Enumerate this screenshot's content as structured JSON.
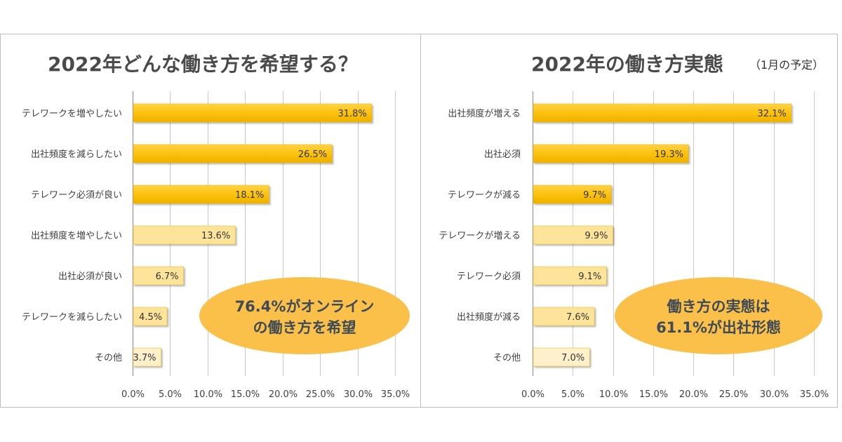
{
  "chart_data": [
    {
      "type": "bar",
      "orientation": "horizontal",
      "title": "2022年どんな働き方を希望する？",
      "subtitle": "",
      "categories": [
        "テレワークを増やしたい",
        "出社頻度を減らしたい",
        "テレワーク必須が良い",
        "出社頻度を増やしたい",
        "出社必須が良い",
        "テレワークを減らしたい",
        "その他"
      ],
      "values": [
        31.8,
        26.5,
        18.1,
        13.6,
        6.7,
        4.5,
        3.7
      ],
      "value_labels": [
        "31.8%",
        "26.5%",
        "18.1%",
        "13.6%",
        "6.7%",
        "4.5%",
        "3.7%"
      ],
      "bar_colors": [
        "#fcc20a",
        "#fcc20a",
        "#fcc20a",
        "#fde49a",
        "#fde49a",
        "#fde49a",
        "#fff0cc"
      ],
      "xlabel": "",
      "ylabel": "",
      "xlim": [
        0,
        35
      ],
      "xticks": [
        "0.0%",
        "5.0%",
        "10.0%",
        "15.0%",
        "20.0%",
        "25.0%",
        "30.0%",
        "35.0%"
      ],
      "grid": true,
      "legend": "none",
      "annotation": {
        "lines": [
          "76.4%がオンライン",
          "の働き方を希望"
        ],
        "color": "#fbc04a"
      }
    },
    {
      "type": "bar",
      "orientation": "horizontal",
      "title": "2022年の働き方実態",
      "subtitle": "（1月の予定）",
      "categories": [
        "出社頻度が増える",
        "出社必須",
        "テレワークが減る",
        "テレワークが増える",
        "テレワーク必須",
        "出社頻度が減る",
        "その他"
      ],
      "values": [
        32.1,
        19.3,
        9.7,
        9.9,
        9.1,
        7.6,
        7.0
      ],
      "value_labels": [
        "32.1%",
        "19.3%",
        "9.7%",
        "9.9%",
        "9.1%",
        "7.6%",
        "7.0%"
      ],
      "bar_colors": [
        "#fcc20a",
        "#fcc20a",
        "#fcc20a",
        "#fde49a",
        "#fde49a",
        "#fde49a",
        "#fff0cc"
      ],
      "xlabel": "",
      "ylabel": "",
      "xlim": [
        0,
        35
      ],
      "xticks": [
        "0.0%",
        "5.0%",
        "10.0%",
        "15.0%",
        "20.0%",
        "25.0%",
        "30.0%",
        "35.0%"
      ],
      "grid": true,
      "legend": "none",
      "annotation": {
        "lines": [
          "働き方の実態は",
          "61.1%が出社形態"
        ],
        "color": "#fbc04a"
      }
    }
  ]
}
